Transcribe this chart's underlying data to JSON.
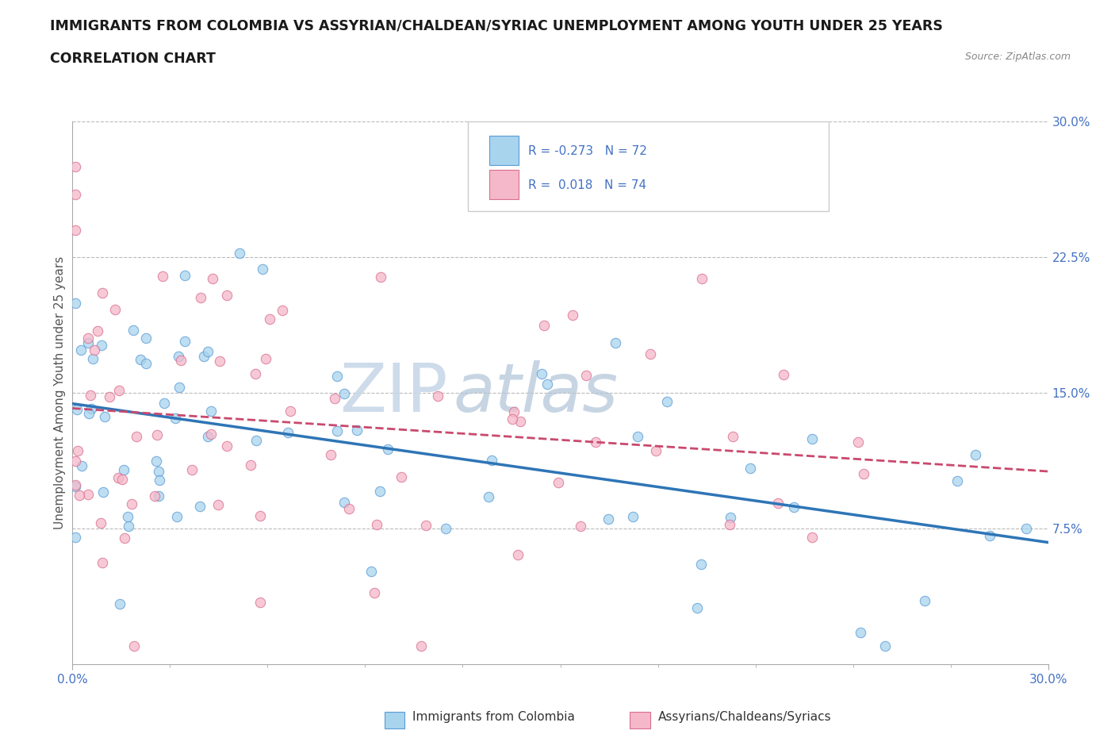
{
  "title": "IMMIGRANTS FROM COLOMBIA VS ASSYRIAN/CHALDEAN/SYRIAC UNEMPLOYMENT AMONG YOUTH UNDER 25 YEARS",
  "subtitle": "CORRELATION CHART",
  "source": "Source: ZipAtlas.com",
  "ylabel": "Unemployment Among Youth under 25 years",
  "xlim": [
    0.0,
    0.3
  ],
  "ylim": [
    0.0,
    0.3
  ],
  "x_tick_labels": [
    "0.0%",
    "30.0%"
  ],
  "y_ticks_right": [
    0.075,
    0.15,
    0.225,
    0.3
  ],
  "y_tick_labels_right": [
    "7.5%",
    "15.0%",
    "22.5%",
    "30.0%"
  ],
  "series": [
    {
      "name": "Immigrants from Colombia",
      "color": "#A8D4EE",
      "edge_color": "#5B9BD5",
      "R": -0.273,
      "N": 72,
      "trend_color": "#2E75B6"
    },
    {
      "name": "Assyrians/Chaldeans/Syriacs",
      "color": "#F5B8CA",
      "edge_color": "#D96F8E",
      "R": 0.018,
      "N": 74,
      "trend_color": "#C9496E"
    }
  ],
  "watermark_zip": "ZIP",
  "watermark_atlas": "atlas",
  "background_color": "#FFFFFF",
  "plot_bg_color": "#FFFFFF",
  "grid_color": "#BBBBBB"
}
